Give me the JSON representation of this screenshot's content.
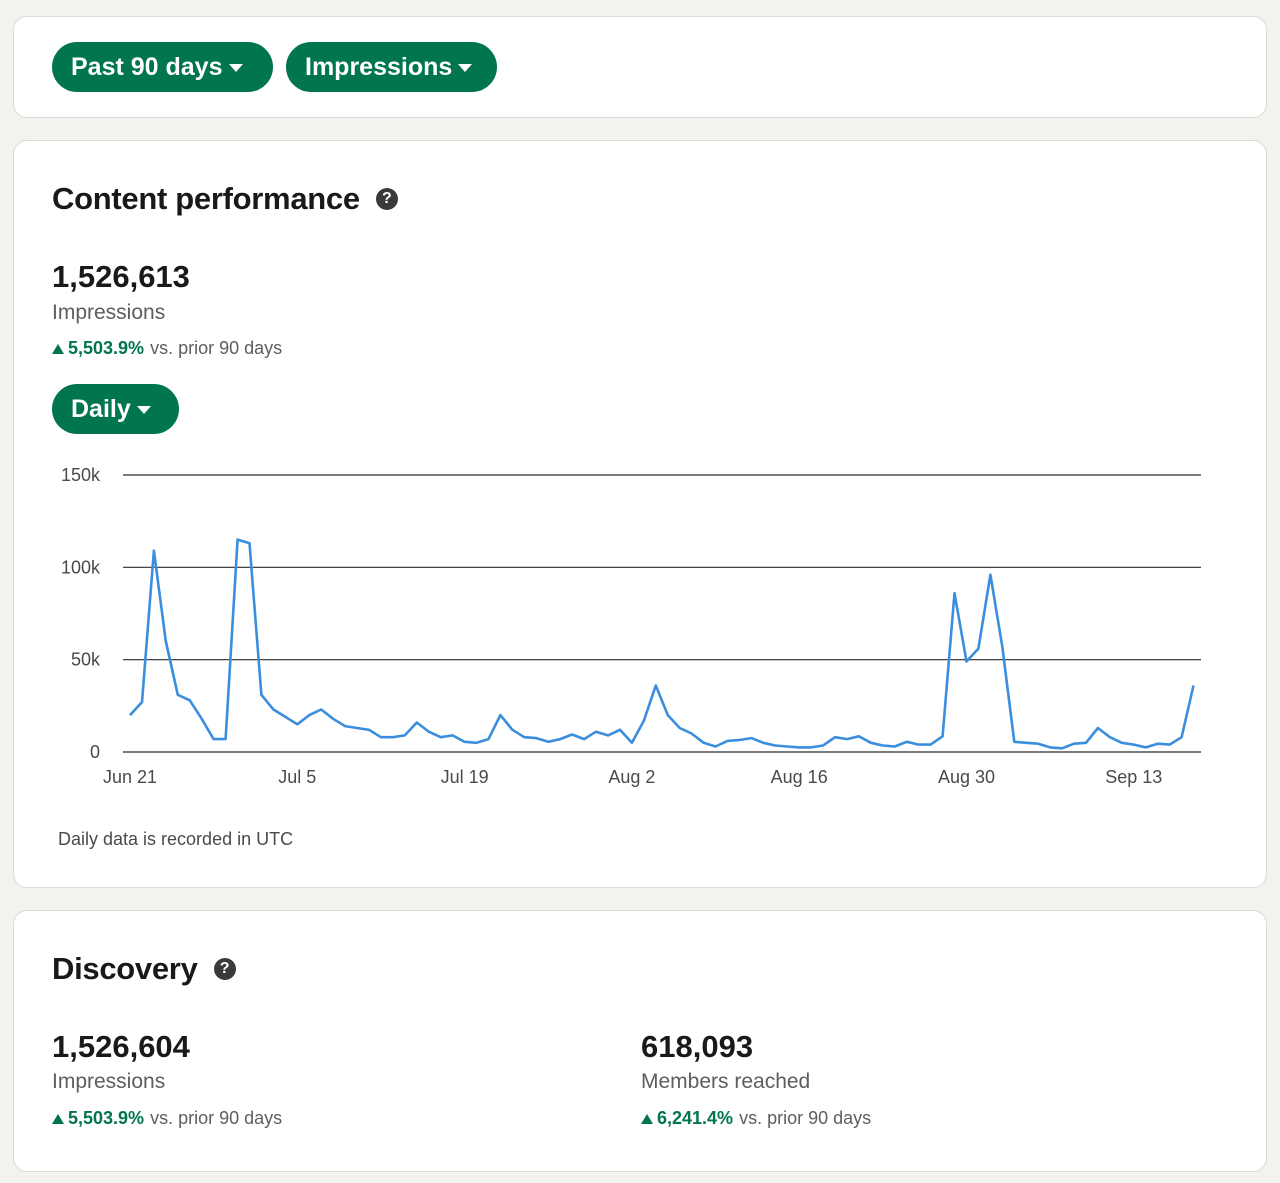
{
  "filters": {
    "range_label": "Past 90 days",
    "metric_label": "Impressions"
  },
  "performance": {
    "title": "Content performance",
    "help_icon": "question-circle-icon",
    "total": "1,526,613",
    "label": "Impressions",
    "delta_pct": "5,503.9%",
    "delta_text": "vs. prior 90 days",
    "granularity_label": "Daily",
    "footnote": "Daily data is recorded in UTC"
  },
  "discovery": {
    "title": "Discovery",
    "help_icon": "question-circle-icon",
    "impressions": {
      "value": "1,526,604",
      "label": "Impressions",
      "delta_pct": "5,503.9%",
      "delta_text": "vs. prior 90 days"
    },
    "members": {
      "value": "618,093",
      "label": "Members reached",
      "delta_pct": "6,241.4%",
      "delta_text": "vs. prior 90 days"
    }
  },
  "colors": {
    "accent": "#01754f",
    "line": "#3b8ede",
    "page_bg": "#f4f2ee"
  },
  "chart_data": {
    "type": "line",
    "title": "",
    "xlabel": "",
    "ylabel": "",
    "ylim": [
      0,
      150000
    ],
    "yticks": [
      0,
      50000,
      100000,
      150000
    ],
    "ytick_labels": [
      "0",
      "50k",
      "100k",
      "150k"
    ],
    "xtick_labels": [
      "Jun 21",
      "Jul 5",
      "Jul 19",
      "Aug 2",
      "Aug 16",
      "Aug 30",
      "Sep 13"
    ],
    "xtick_dates": [
      "2024-06-21",
      "2024-07-05",
      "2024-07-19",
      "2024-08-02",
      "2024-08-16",
      "2024-08-30",
      "2024-09-13"
    ],
    "grid": true,
    "series": [
      {
        "values": [
          20000,
          27000,
          109000,
          60000,
          31000,
          28000,
          18000,
          7000,
          7000,
          115000,
          113000,
          31000,
          23000,
          19000,
          15000,
          20000,
          23000,
          18000,
          14000,
          13000,
          12000,
          8000,
          8000,
          9000,
          16000,
          11000,
          8000,
          9000,
          5500,
          5000,
          7000,
          20000,
          12000,
          8000,
          7500,
          5500,
          7000,
          9500,
          7000,
          11000,
          9000,
          12000,
          5000,
          17000,
          36000,
          20000,
          13000,
          10000,
          5000,
          3000,
          6000,
          6500,
          7500,
          5000,
          3500,
          3000,
          2500,
          2500,
          3500,
          8000,
          7000,
          8500,
          5000,
          3500,
          3000,
          5500,
          4000,
          4000,
          8500,
          86000,
          49000,
          56000,
          96000,
          57000,
          5500,
          5000,
          4500,
          2500,
          2000,
          4500,
          5000,
          13000,
          8000,
          5000,
          4000,
          2500,
          4500,
          4000,
          8000,
          36000
        ]
      }
    ]
  }
}
